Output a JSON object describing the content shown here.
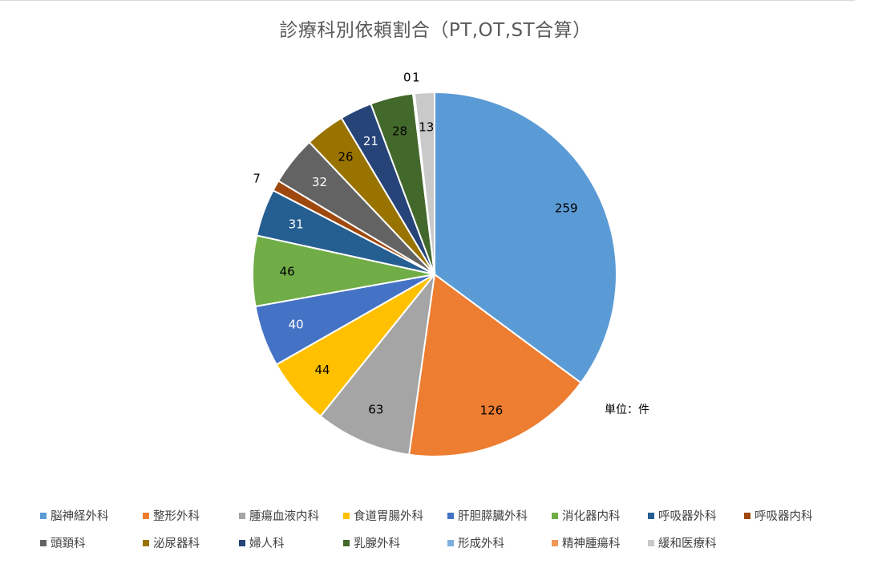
{
  "chart_data": {
    "type": "pie",
    "title": "診療科別依頼割合（PT,OT,ST合算）",
    "unit_note": "単位：件",
    "slices": [
      {
        "label": "脳神経外科",
        "value": 259,
        "color": "#5B9BD5",
        "label_color": "#000000"
      },
      {
        "label": "整形外科",
        "value": 126,
        "color": "#ED7D31",
        "label_color": "#000000"
      },
      {
        "label": "腫瘍血液内科",
        "value": 63,
        "color": "#A5A5A5",
        "label_color": "#000000"
      },
      {
        "label": "食道胃腸外科",
        "value": 44,
        "color": "#FFC000",
        "label_color": "#000000"
      },
      {
        "label": "肝胆膵臓外科",
        "value": 40,
        "color": "#4472C4",
        "label_color": "#ffffff"
      },
      {
        "label": "消化器内科",
        "value": 46,
        "color": "#70AD47",
        "label_color": "#000000"
      },
      {
        "label": "呼吸器外科",
        "value": 31,
        "color": "#255E91",
        "label_color": "#ffffff"
      },
      {
        "label": "呼吸器内科",
        "value": 7,
        "color": "#9E480E",
        "label_color": "#000000"
      },
      {
        "label": "頭頚科",
        "value": 32,
        "color": "#636363",
        "label_color": "#ffffff"
      },
      {
        "label": "泌尿器科",
        "value": 26,
        "color": "#997300",
        "label_color": "#000000"
      },
      {
        "label": "婦人科",
        "value": 21,
        "color": "#264478",
        "label_color": "#ffffff"
      },
      {
        "label": "乳腺外科",
        "value": 28,
        "color": "#43682B",
        "label_color": "#000000"
      },
      {
        "label": "形成外科",
        "value": 0,
        "color": "#7CAFDD",
        "label_color": "#000000"
      },
      {
        "label": "精神腫瘍科",
        "value": 1,
        "color": "#F1975A",
        "label_color": "#000000"
      },
      {
        "label": "緩和医療科",
        "value": 13,
        "color": "#C9C9C9",
        "label_color": "#000000"
      }
    ]
  }
}
